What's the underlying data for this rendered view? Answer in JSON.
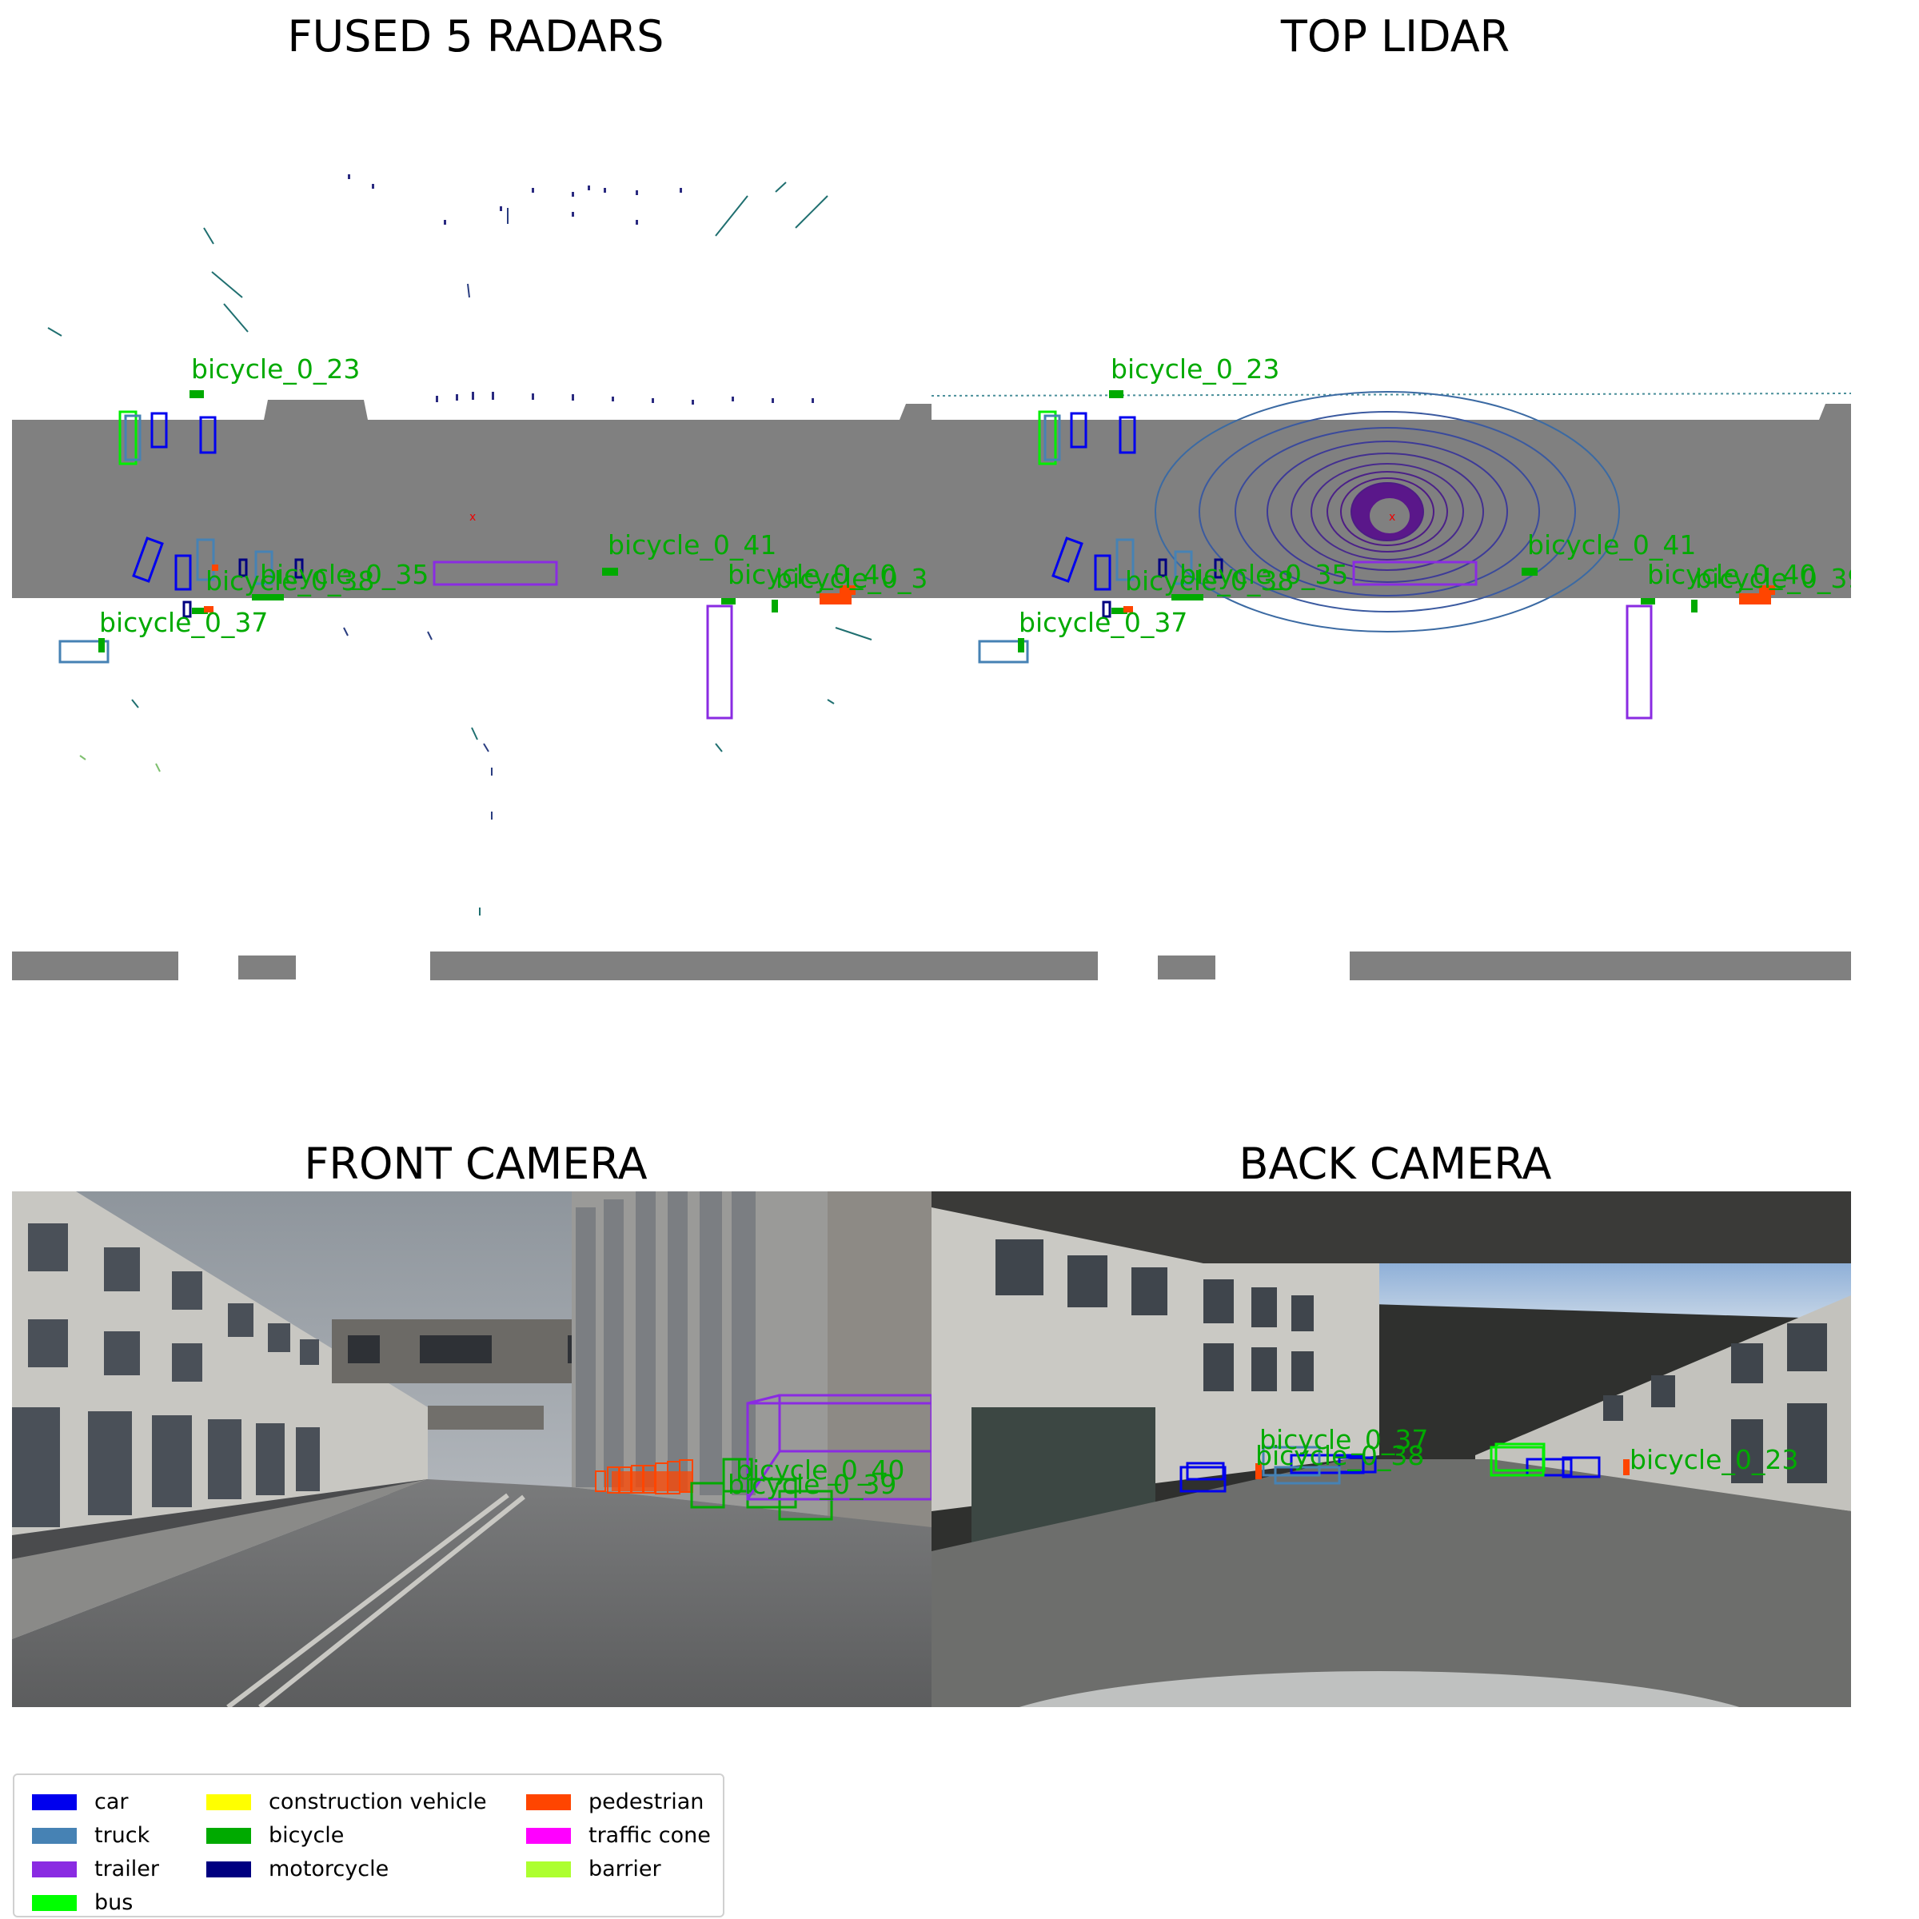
{
  "panels": {
    "radar": {
      "title": "FUSED 5 RADARS"
    },
    "lidar": {
      "title": "TOP LIDAR"
    },
    "front": {
      "title": "FRONT CAMERA"
    },
    "back": {
      "title": "BACK CAMERA"
    }
  },
  "bev_labels": [
    {
      "text": "bicycle_0_23"
    },
    {
      "text": "bicycle_0_41"
    },
    {
      "text": "bicycle_0_37"
    },
    {
      "text": "bicycle_0_40"
    },
    {
      "text": "bicycle_0_38"
    },
    {
      "text": "bicycle_0_35"
    },
    {
      "text": "bicycle_0_39"
    }
  ],
  "radar_extra_label": "bicycle_0_3",
  "front_labels": [
    {
      "text": "bicycle_0_40"
    },
    {
      "text": "bicycle_0_39"
    }
  ],
  "back_labels": [
    {
      "text": "bicycle_0_37"
    },
    {
      "text": "bicycle_0_38"
    },
    {
      "text": "bicycle_0_23"
    }
  ],
  "legend": [
    {
      "label": "car",
      "color": "#0000ee"
    },
    {
      "label": "truck",
      "color": "#4682b4"
    },
    {
      "label": "trailer",
      "color": "#8a2be2"
    },
    {
      "label": "bus",
      "color": "#00ff00"
    },
    {
      "label": "construction vehicle",
      "color": "#ffff00"
    },
    {
      "label": "bicycle",
      "color": "#00aa00"
    },
    {
      "label": "motorcycle",
      "color": "#000080"
    },
    {
      "label": "pedestrian",
      "color": "#ff4500"
    },
    {
      "label": "traffic cone",
      "color": "#ff00ff"
    },
    {
      "label": "barrier",
      "color": "#adff2f"
    }
  ]
}
